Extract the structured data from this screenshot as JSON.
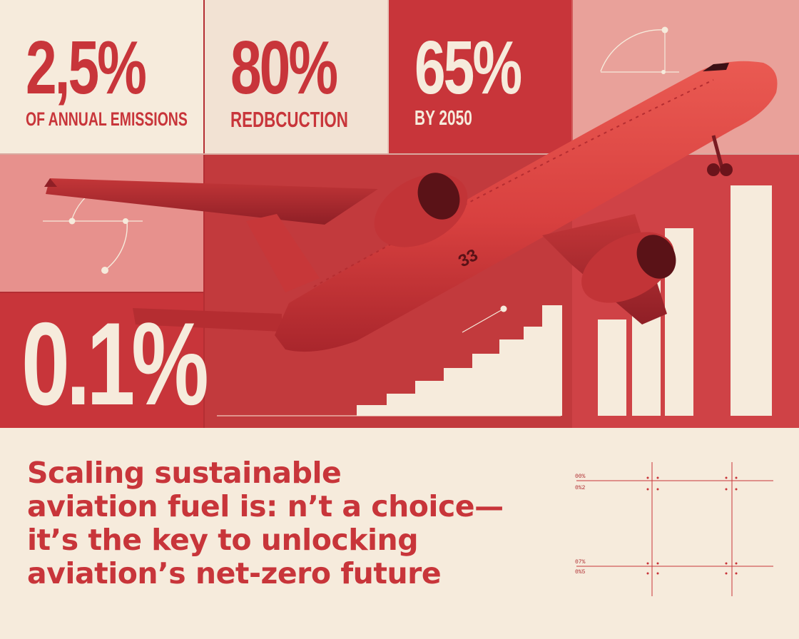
{
  "stats": [
    {
      "value": "2,5%",
      "caption": "OF ANNUAL EMISSIONS"
    },
    {
      "value": "80%",
      "caption": "REDBCUCTION"
    },
    {
      "value": "65%",
      "caption": "BY 2050"
    },
    {
      "value": "0.1%"
    }
  ],
  "headline": {
    "lines": [
      "Scaling sustainable",
      "aviation fuel is: n’t a choice—",
      "it’s the key to unlocking",
      "aviation’s net-zero future"
    ]
  },
  "mini_table": {
    "row_labels": [
      "00%",
      "0%2",
      "07%",
      "0%5"
    ]
  },
  "aircraft_marking": "33",
  "colors": {
    "cream": "#f6ebdc",
    "red": "#c8353a",
    "deep_red": "#a9262c",
    "pale_red": "#e28a8a",
    "plane_red": "#d8403f"
  }
}
